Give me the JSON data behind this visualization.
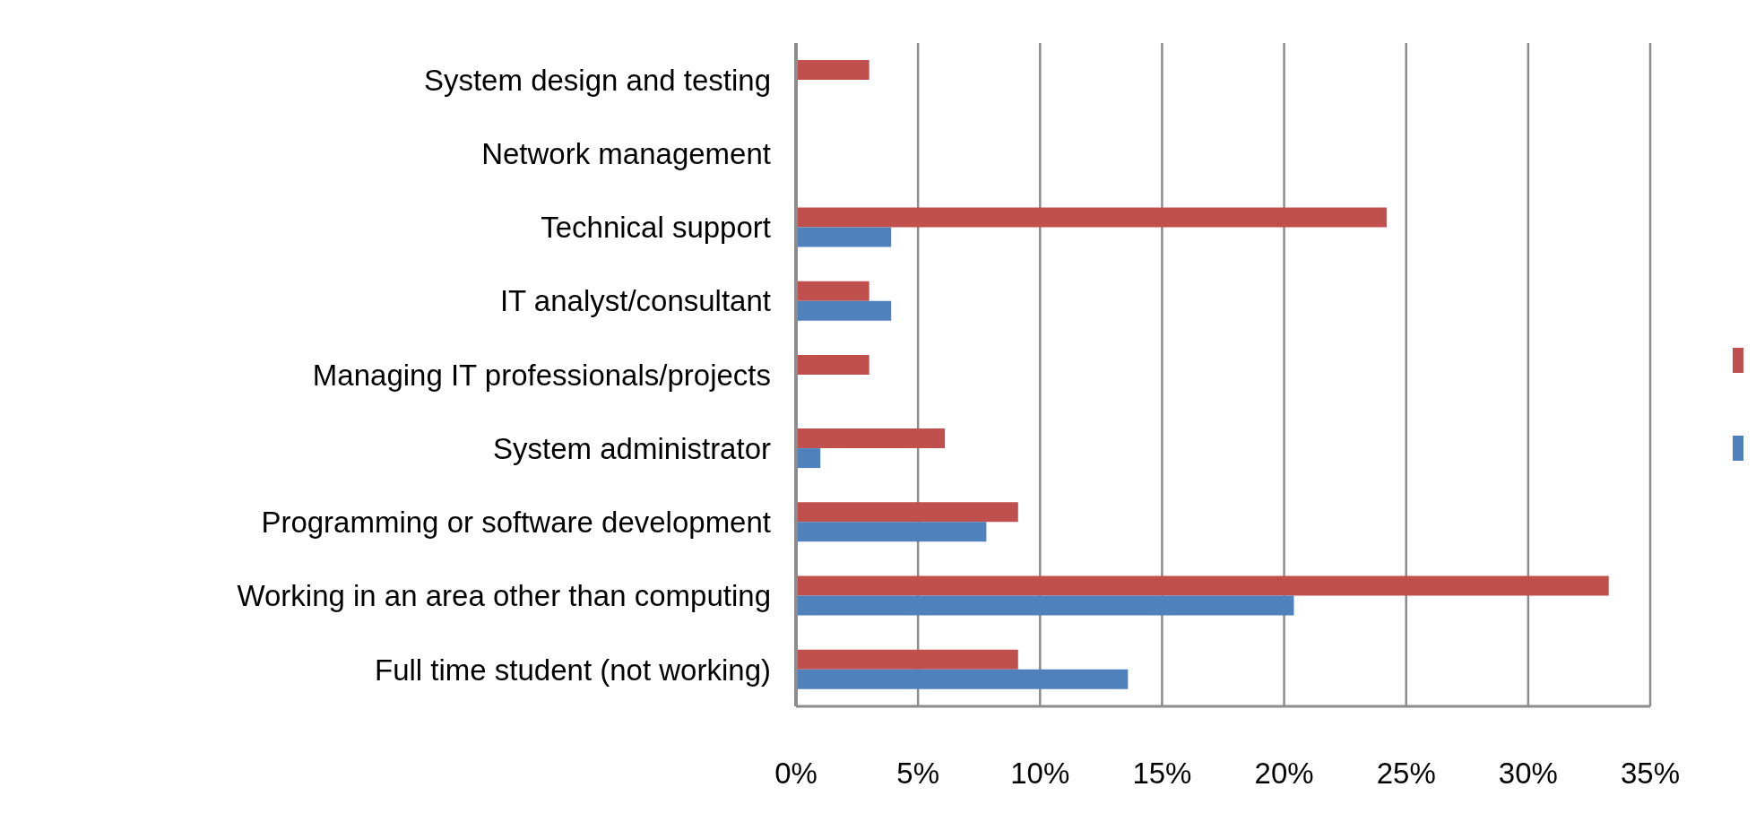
{
  "chart_data": {
    "type": "bar",
    "orientation": "horizontal",
    "categories": [
      "System design and testing",
      "Network management",
      "Technical support",
      "IT analyst/consultant",
      "Managing IT professionals/projects",
      "System administrator",
      "Programming or software development",
      "Working in an area other than computing",
      "Full time student (not working)"
    ],
    "series": [
      {
        "color": "#c0504d",
        "values": [
          3.0,
          0,
          24.2,
          3.0,
          3.0,
          6.1,
          9.1,
          33.3,
          9.1
        ]
      },
      {
        "color": "#4f81bd",
        "values": [
          0,
          0,
          3.9,
          3.9,
          0,
          1.0,
          7.8,
          20.4,
          13.6
        ]
      }
    ],
    "xlim": [
      0,
      35
    ],
    "xticks": [
      {
        "value": 0,
        "label": "0%"
      },
      {
        "value": 5,
        "label": "5%"
      },
      {
        "value": 10,
        "label": "10%"
      },
      {
        "value": 15,
        "label": "15%"
      },
      {
        "value": 20,
        "label": "20%"
      },
      {
        "value": 25,
        "label": "25%"
      },
      {
        "value": 30,
        "label": "30%"
      },
      {
        "value": 35,
        "label": "35%"
      }
    ],
    "grid": "x"
  }
}
